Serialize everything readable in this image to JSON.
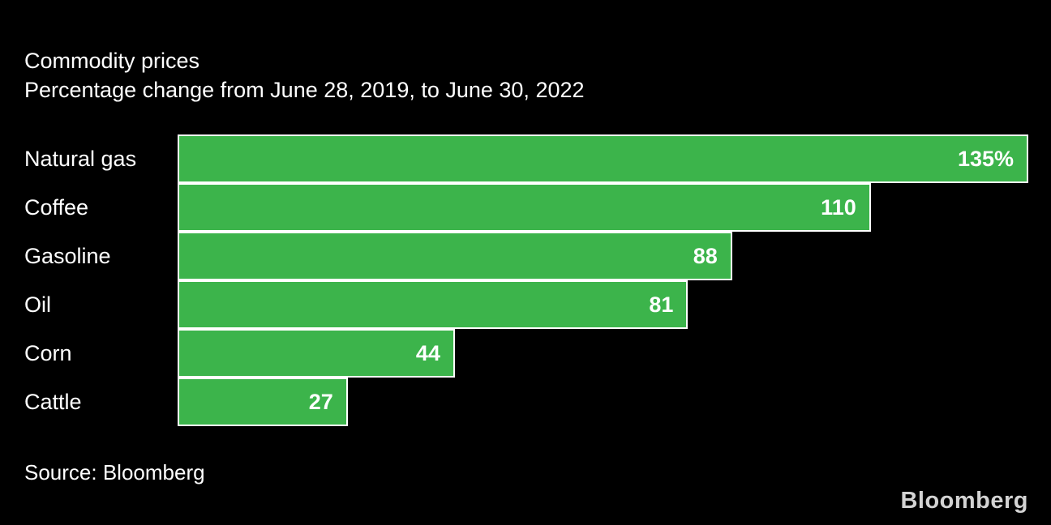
{
  "chart_data": {
    "type": "bar",
    "orientation": "horizontal",
    "title": "Commodity prices",
    "subtitle": "Percentage change from June 28, 2019, to June 30, 2022",
    "categories": [
      "Natural gas",
      "Coffee",
      "Gasoline",
      "Oil",
      "Corn",
      "Cattle"
    ],
    "values": [
      135,
      110,
      88,
      81,
      44,
      27
    ],
    "value_labels": [
      "135%",
      "110",
      "88",
      "81",
      "44",
      "27"
    ],
    "xlim": [
      0,
      135
    ],
    "grid": false,
    "legend": false,
    "bar_color": "#3CB44B",
    "bar_border_color": "#FFFFFF",
    "background_color": "#000000",
    "text_color": "#FFFFFF"
  },
  "footer": {
    "source": "Source: Bloomberg",
    "logo": "Bloomberg",
    "logo_color": "#D3D3D3"
  }
}
